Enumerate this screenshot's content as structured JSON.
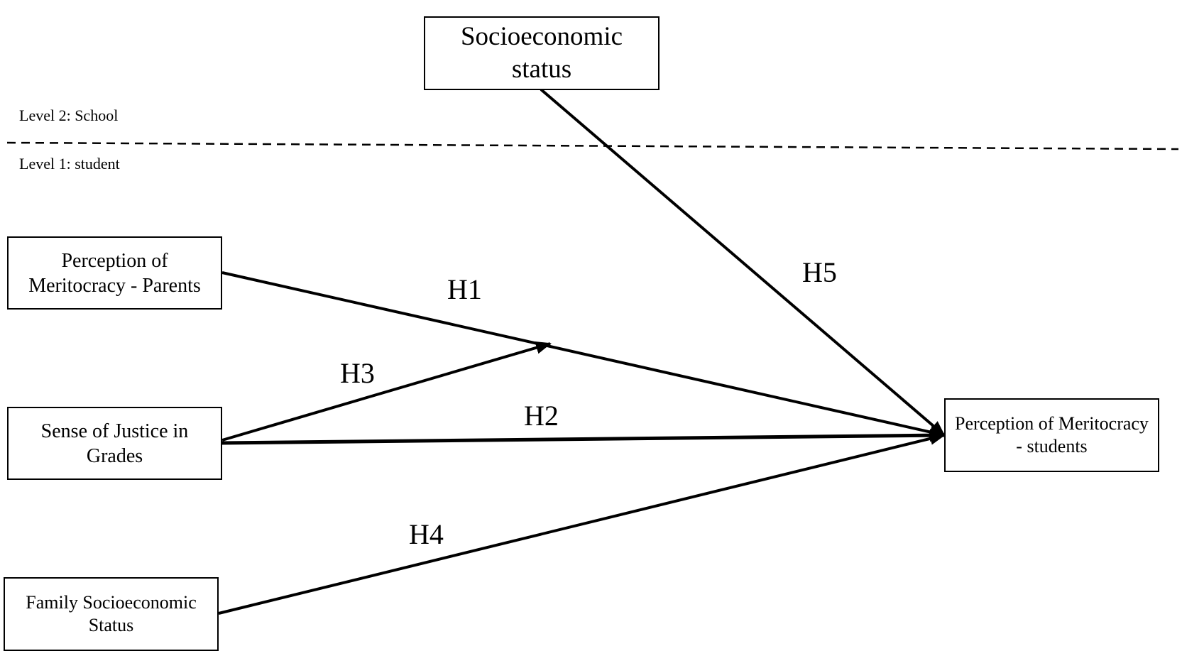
{
  "levels": {
    "level2": "Level 2: School",
    "level1": "Level 1: student"
  },
  "nodes": {
    "school_ses": "Socioeconomic status",
    "parents_meritocracy": "Perception of Meritocracy - Parents",
    "justice_grades": "Sense of Justice in Grades",
    "family_ses": "Family Socioeconomic Status",
    "students_meritocracy": "Perception of Meritocracy - students"
  },
  "hypotheses": {
    "h1": "H1",
    "h2": "H2",
    "h3": "H3",
    "h4": "H4",
    "h5": "H5"
  },
  "edges": [
    {
      "from": "parents_meritocracy",
      "to": "students_meritocracy",
      "label": "H1"
    },
    {
      "from": "justice_grades",
      "to": "students_meritocracy",
      "label": "H2"
    },
    {
      "from": "justice_grades",
      "to": "H1 path (moderation)",
      "label": "H3"
    },
    {
      "from": "family_ses",
      "to": "students_meritocracy",
      "label": "H4"
    },
    {
      "from": "school_ses",
      "to": "students_meritocracy",
      "label": "H5"
    }
  ]
}
